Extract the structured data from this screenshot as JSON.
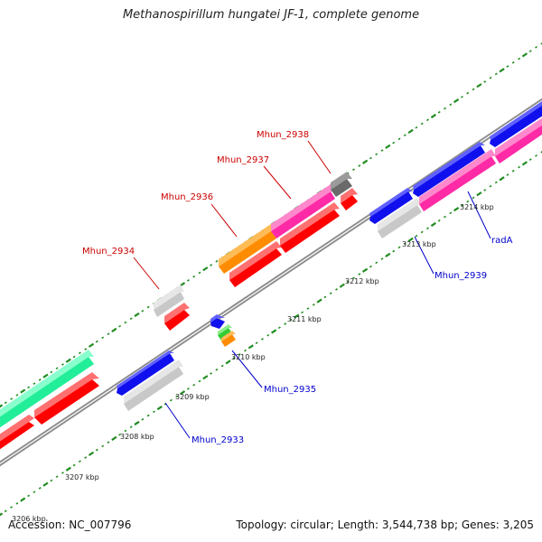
{
  "title": "Methanospirillum hungatei JF-1, complete genome",
  "footer": {
    "accession": "Accession: NC_007796",
    "summary": "Topology: circular; Length: 3,544,738 bp; Genes: 3,205"
  },
  "colors": {
    "backbone": "#8c8c8c",
    "tick_minor": "#1f8c1f",
    "forward_label": "#cc0000",
    "reverse_label": "#0000cc",
    "gene_red": "#ff0000",
    "gene_blue": "#1010ee",
    "gene_pink": "#ff2aa6",
    "gene_gray": "#c8c8c8",
    "gene_orange": "#ff8c00",
    "gene_green": "#22ee99",
    "gene_darkgray": "#6a6a6a",
    "gene_lime": "#33cc33"
  },
  "kbp_labels": [
    "3206 kbp",
    "3207 kbp",
    "3208 kbp",
    "3209 kbp",
    "3210 kbp",
    "3211 kbp",
    "3212 kbp",
    "3213 kbp",
    "3214 kbp"
  ],
  "gene_labels_forward": [
    "Mhun_2934",
    "Mhun_2936",
    "Mhun_2937",
    "Mhun_2938"
  ],
  "gene_labels_reverse": [
    "Mhun_2933",
    "Mhun_2935",
    "Mhun_2939",
    "radA"
  ]
}
